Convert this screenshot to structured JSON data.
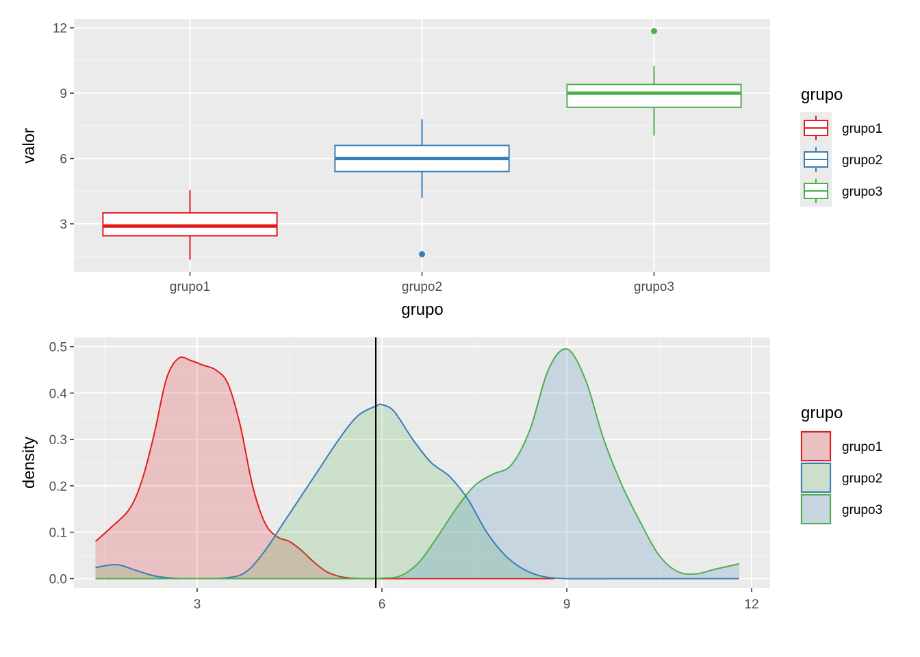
{
  "colors": {
    "panel_bg": "#EBEBEB",
    "grid_major": "#FFFFFF",
    "grid_minor": "#F5F5F5",
    "grupo1": "#E41A1C",
    "grupo2": "#377EB8",
    "grupo3": "#4DAF4A",
    "fill_grupo1": "#E41A1C",
    "fill_grupo2": "#4DAF4A",
    "fill_grupo3": "#377EB8",
    "vline": "#000000"
  },
  "chart_data": [
    {
      "type": "box",
      "xlabel": "grupo",
      "ylabel": "valor",
      "ylim": [
        0.8,
        12.4
      ],
      "yticks": [
        "3",
        "6",
        "9",
        "12"
      ],
      "ytick_values": [
        3,
        6,
        9,
        12
      ],
      "categories": [
        "grupo1",
        "grupo2",
        "grupo3"
      ],
      "grid": true,
      "legend": {
        "title": "grupo",
        "position": "right",
        "labels": [
          "grupo1",
          "grupo2",
          "grupo3"
        ]
      },
      "series": [
        {
          "name": "grupo1",
          "whisker_low": 1.35,
          "q1": 2.45,
          "median": 2.9,
          "q3": 3.5,
          "whisker_high": 4.55,
          "outliers": []
        },
        {
          "name": "grupo2",
          "whisker_low": 4.2,
          "q1": 5.4,
          "median": 6.0,
          "q3": 6.6,
          "whisker_high": 7.8,
          "outliers": [
            1.6
          ]
        },
        {
          "name": "grupo3",
          "whisker_low": 7.05,
          "q1": 8.35,
          "median": 9.0,
          "q3": 9.4,
          "whisker_high": 10.25,
          "outliers": [
            11.85
          ]
        }
      ]
    },
    {
      "type": "area",
      "xlabel": "",
      "ylabel": "density",
      "xlim": [
        1.0,
        12.3
      ],
      "ylim": [
        -0.02,
        0.52
      ],
      "xticks": [
        "3",
        "6",
        "9",
        "12"
      ],
      "xtick_values": [
        3,
        6,
        9,
        12
      ],
      "yticks": [
        "0.0",
        "0.1",
        "0.2",
        "0.3",
        "0.4",
        "0.5"
      ],
      "ytick_values": [
        0,
        0.1,
        0.2,
        0.3,
        0.4,
        0.5
      ],
      "vline": 5.9,
      "grid": true,
      "legend": {
        "title": "grupo",
        "position": "right",
        "labels": [
          "grupo1",
          "grupo2",
          "grupo3"
        ]
      },
      "series": [
        {
          "name": "grupo1",
          "x": [
            1.35,
            1.6,
            1.9,
            2.1,
            2.3,
            2.5,
            2.7,
            2.9,
            3.1,
            3.3,
            3.5,
            3.7,
            3.9,
            4.1,
            4.3,
            4.5,
            4.7,
            4.9,
            5.1,
            5.3,
            5.5,
            5.7,
            6.0,
            7.0,
            8.0,
            8.8
          ],
          "values": [
            0.08,
            0.11,
            0.15,
            0.21,
            0.31,
            0.43,
            0.475,
            0.47,
            0.46,
            0.45,
            0.42,
            0.33,
            0.2,
            0.12,
            0.09,
            0.08,
            0.06,
            0.035,
            0.015,
            0.005,
            0.001,
            0.0,
            0.0,
            0.0,
            0.0,
            0.0
          ]
        },
        {
          "name": "grupo2",
          "x": [
            1.35,
            1.7,
            2.0,
            2.3,
            2.6,
            3.0,
            3.5,
            3.8,
            4.1,
            4.4,
            4.7,
            5.0,
            5.3,
            5.6,
            5.9,
            6.0,
            6.2,
            6.5,
            6.8,
            7.1,
            7.4,
            7.7,
            8.0,
            8.3,
            8.6,
            9.0,
            10.0,
            11.0,
            11.8
          ],
          "values": [
            0.024,
            0.03,
            0.018,
            0.006,
            0.001,
            0.0,
            0.002,
            0.015,
            0.06,
            0.12,
            0.18,
            0.24,
            0.3,
            0.35,
            0.372,
            0.375,
            0.36,
            0.3,
            0.25,
            0.22,
            0.17,
            0.1,
            0.05,
            0.02,
            0.005,
            0.0,
            0.0,
            0.0,
            0.0
          ]
        },
        {
          "name": "grupo3",
          "x": [
            1.35,
            5.5,
            6.0,
            6.3,
            6.6,
            6.9,
            7.2,
            7.5,
            7.8,
            8.1,
            8.4,
            8.7,
            9.0,
            9.3,
            9.6,
            9.9,
            10.2,
            10.5,
            10.8,
            11.1,
            11.4,
            11.8
          ],
          "values": [
            0.0,
            0.0,
            0.001,
            0.006,
            0.035,
            0.09,
            0.15,
            0.2,
            0.225,
            0.245,
            0.32,
            0.45,
            0.495,
            0.43,
            0.3,
            0.2,
            0.12,
            0.05,
            0.015,
            0.01,
            0.02,
            0.032
          ]
        }
      ]
    }
  ]
}
